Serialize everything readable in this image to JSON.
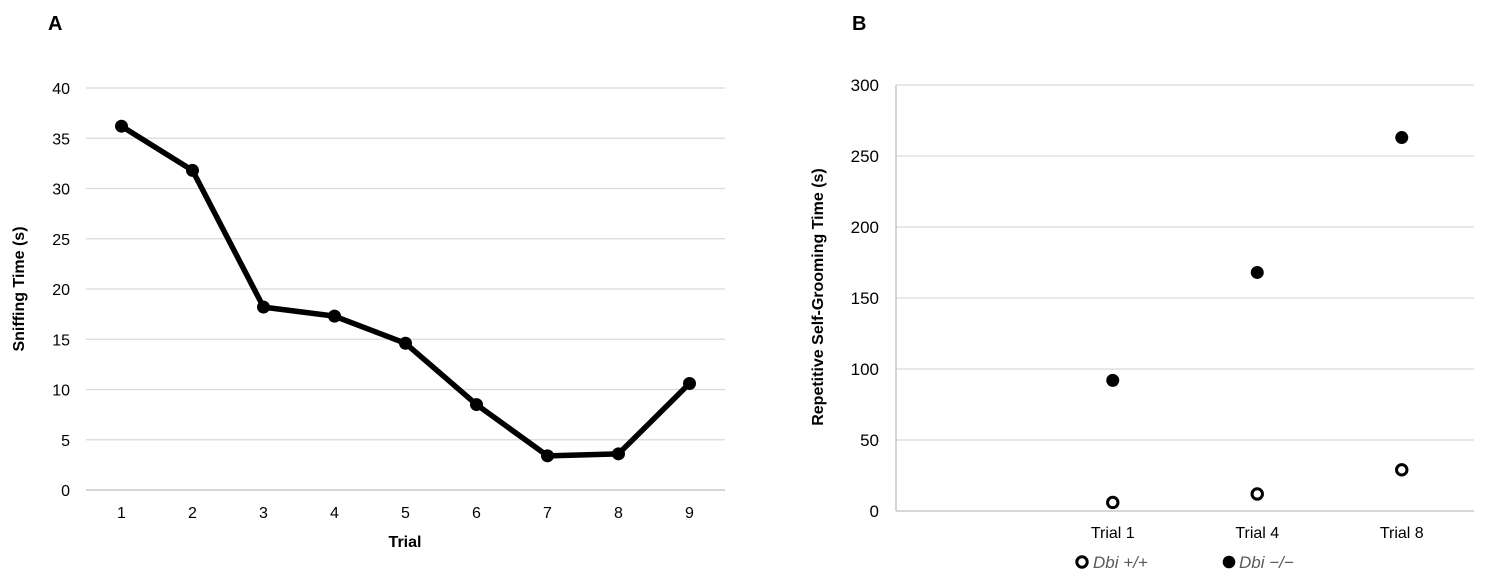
{
  "panels": [
    {
      "label": "A",
      "chart_data": {
        "type": "line",
        "x": [
          1,
          2,
          3,
          4,
          5,
          6,
          7,
          8,
          9
        ],
        "categories": [
          "1",
          "2",
          "3",
          "4",
          "5",
          "6",
          "7",
          "8",
          "9"
        ],
        "series": [
          {
            "values": [
              36.2,
              31.8,
              18.2,
              17.3,
              14.6,
              8.5,
              3.4,
              3.6,
              10.6
            ],
            "color": "#000000"
          }
        ],
        "xlabel": "Trial",
        "ylabel": "Sniffing Time (s)",
        "ylim": [
          0,
          40
        ],
        "yticks": [
          "0",
          "5",
          "10",
          "15",
          "20",
          "25",
          "30",
          "35",
          "40"
        ],
        "grid": true,
        "legend": "none"
      }
    },
    {
      "label": "B",
      "chart_data": {
        "type": "scatter",
        "categories": [
          "Trial 1",
          "Trial 4",
          "Trial 8"
        ],
        "series": [
          {
            "name": "Dbi +/+",
            "values": [
              6,
              12,
              29
            ],
            "marker": "open-circle",
            "color": "#000000"
          },
          {
            "name": "Dbi −/−",
            "values": [
              92,
              168,
              263
            ],
            "marker": "filled-circle",
            "color": "#000000"
          }
        ],
        "xlabel": "",
        "ylabel": "Repetitive Self-Grooming Time (s)",
        "ylim": [
          0,
          300
        ],
        "yticks": [
          "0",
          "50",
          "100",
          "150",
          "200",
          "250",
          "300"
        ],
        "grid": true,
        "legend": "bottom"
      }
    }
  ]
}
